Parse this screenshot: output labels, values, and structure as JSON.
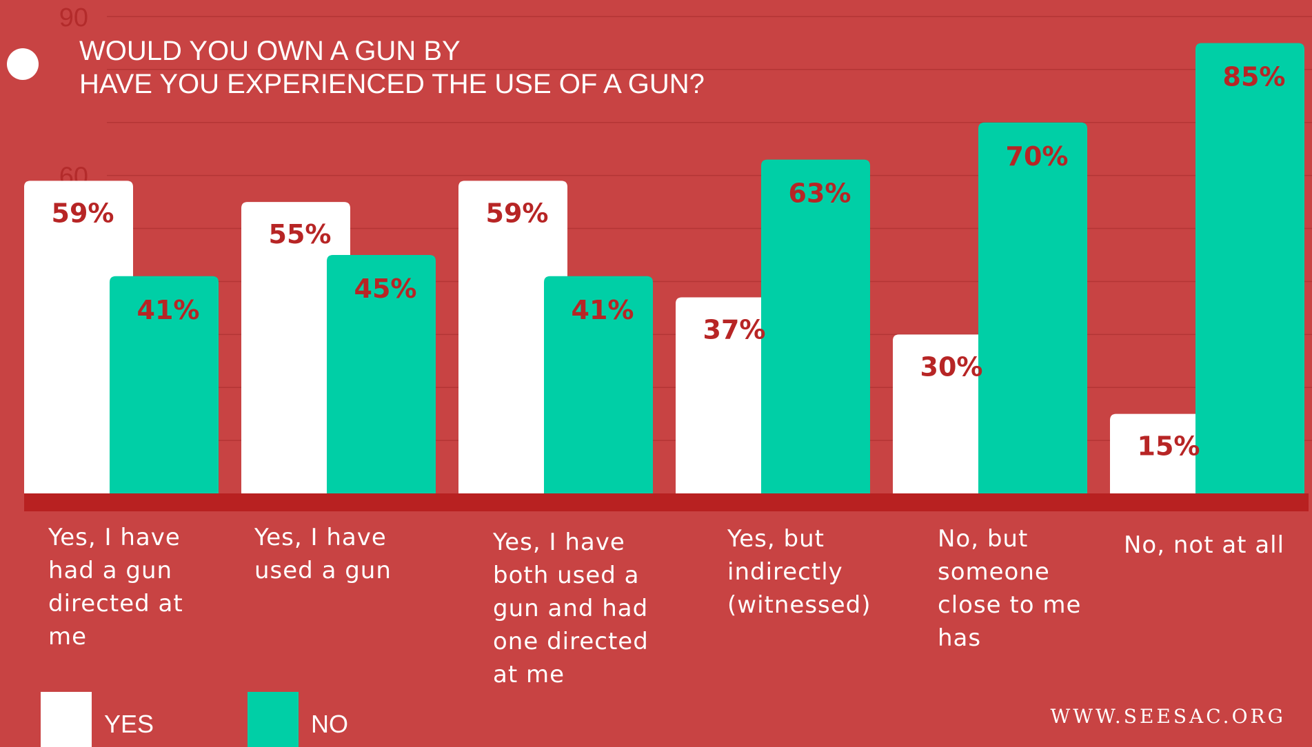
{
  "title": {
    "line1": "WOULD YOU OWN A GUN BY",
    "line2": "HAVE YOU EXPERIENCED THE USE OF A GUN?"
  },
  "colors": {
    "background": "#c84343",
    "yes": "#ffffff",
    "no": "#00cfa6",
    "value_label": "#b72525",
    "baseline": "#b82121"
  },
  "chart_data": {
    "type": "bar",
    "title": "WOULD YOU OWN A GUN BY HAVE YOU EXPERIENCED THE USE OF A GUN?",
    "categories": [
      "Yes, I have had a gun directed at me",
      "Yes, I have used a gun",
      "Yes, I have both used a gun and had one directed at me",
      "Yes, but indirectly (witnessed)",
      "No, but someone close to me has",
      "No, not at all"
    ],
    "series": [
      {
        "name": "YES",
        "values": [
          59,
          55,
          59,
          37,
          30,
          15
        ]
      },
      {
        "name": "NO",
        "values": [
          41,
          45,
          41,
          63,
          70,
          85
        ]
      }
    ],
    "value_suffix": "%",
    "ylim": [
      0,
      90
    ],
    "visible_ticks": [
      "90",
      "60"
    ],
    "grid": true,
    "legend": "bottom-left"
  },
  "legend": {
    "yes": "YES",
    "no": "NO"
  },
  "footer": {
    "site": "WWW.SEESAC.ORG"
  }
}
